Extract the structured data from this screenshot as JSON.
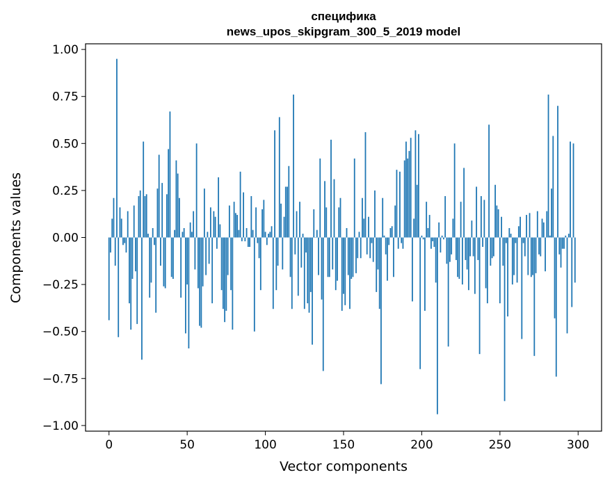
{
  "chart_data": {
    "type": "bar",
    "title_line1": "специфика",
    "title_line2": "news_upos_skipgram_300_5_2019 model",
    "xlabel": "Vector components",
    "ylabel": "Components values",
    "xlim": [
      -15,
      315
    ],
    "ylim": [
      -1.03,
      1.03
    ],
    "xticks": [
      0,
      50,
      100,
      150,
      200,
      250,
      300
    ],
    "xtick_labels": [
      "0",
      "50",
      "100",
      "150",
      "200",
      "250",
      "300"
    ],
    "yticks": [
      1.0,
      0.75,
      0.5,
      0.25,
      0.0,
      -0.25,
      -0.5,
      -0.75,
      -1.0
    ],
    "ytick_labels": [
      "1.00",
      "0.75",
      "0.50",
      "0.25",
      "0.00",
      "−0.25",
      "−0.50",
      "−0.75",
      "−1.00"
    ],
    "bar_color": "#1f77b4",
    "grid": false,
    "values": [
      -0.44,
      -0.08,
      0.1,
      0.21,
      -0.15,
      0.95,
      -0.53,
      0.16,
      0.1,
      -0.04,
      -0.03,
      -0.08,
      0.14,
      -0.35,
      -0.49,
      -0.22,
      0.17,
      -0.18,
      -0.46,
      0.22,
      0.25,
      -0.65,
      0.51,
      0.22,
      0.23,
      0.02,
      -0.32,
      -0.24,
      0.05,
      -0.04,
      -0.4,
      0.26,
      0.44,
      -0.15,
      0.29,
      -0.26,
      -0.27,
      0.23,
      0.47,
      0.67,
      -0.21,
      -0.22,
      0.04,
      0.41,
      0.34,
      0.21,
      -0.32,
      0.03,
      0.05,
      -0.51,
      -0.25,
      -0.59,
      0.08,
      0.03,
      0.14,
      -0.17,
      0.5,
      -0.27,
      -0.47,
      -0.48,
      -0.26,
      0.26,
      -0.2,
      0.03,
      -0.14,
      0.16,
      -0.35,
      0.14,
      0.11,
      -0.06,
      0.32,
      0.07,
      -0.28,
      -0.38,
      -0.45,
      -0.39,
      -0.2,
      0.17,
      -0.28,
      -0.49,
      0.19,
      0.13,
      0.12,
      0.04,
      0.35,
      -0.02,
      0.24,
      -0.02,
      0.05,
      -0.05,
      -0.05,
      0.22,
      0.04,
      -0.5,
      0.16,
      -0.03,
      -0.11,
      -0.28,
      0.15,
      0.2,
      0.03,
      -0.04,
      0.02,
      0.03,
      0.06,
      -0.38,
      0.57,
      -0.28,
      -0.15,
      0.64,
      0.18,
      -0.17,
      0.11,
      0.27,
      0.27,
      0.38,
      -0.21,
      -0.38,
      0.76,
      -0.09,
      0.14,
      -0.31,
      0.19,
      -0.16,
      0.02,
      -0.38,
      -0.08,
      -0.35,
      -0.4,
      -0.29,
      -0.57,
      0.15,
      0.0,
      0.04,
      -0.2,
      0.42,
      -0.33,
      -0.71,
      0.3,
      0.16,
      -0.21,
      -0.21,
      0.52,
      -0.17,
      0.31,
      -0.28,
      -0.23,
      0.16,
      0.21,
      -0.39,
      -0.3,
      -0.36,
      0.05,
      -0.2,
      -0.38,
      -0.22,
      -0.21,
      0.42,
      -0.19,
      -0.11,
      0.03,
      -0.11,
      0.21,
      0.1,
      0.56,
      -0.09,
      0.11,
      -0.11,
      -0.03,
      -0.13,
      0.25,
      -0.29,
      -0.17,
      -0.38,
      -0.78,
      0.21,
      0.01,
      -0.09,
      -0.23,
      -0.04,
      0.05,
      0.06,
      -0.21,
      0.17,
      0.36,
      -0.06,
      0.35,
      -0.03,
      -0.06,
      0.41,
      0.51,
      0.42,
      0.46,
      0.53,
      -0.34,
      0.1,
      0.57,
      0.28,
      0.55,
      -0.7,
      0.01,
      -0.01,
      -0.39,
      0.19,
      0.05,
      0.12,
      -0.06,
      -0.02,
      -0.05,
      -0.24,
      -0.94,
      0.08,
      -0.08,
      0.01,
      -0.01,
      0.22,
      -0.14,
      -0.58,
      -0.13,
      -0.09,
      0.1,
      0.5,
      -0.12,
      -0.21,
      -0.22,
      0.19,
      -0.25,
      0.37,
      -0.12,
      -0.17,
      -0.28,
      -0.1,
      0.09,
      -0.1,
      -0.3,
      0.27,
      -0.12,
      -0.62,
      0.22,
      -0.05,
      0.2,
      -0.27,
      -0.35,
      0.6,
      -0.15,
      -0.11,
      -0.1,
      0.28,
      0.17,
      0.15,
      -0.35,
      0.11,
      -0.15,
      -0.87,
      -0.03,
      -0.42,
      0.05,
      0.02,
      -0.25,
      -0.2,
      -0.03,
      -0.24,
      0.06,
      0.11,
      -0.54,
      -0.03,
      -0.1,
      0.12,
      -0.2,
      0.13,
      -0.21,
      -0.2,
      -0.63,
      -0.19,
      0.14,
      -0.09,
      -0.1,
      0.1,
      0.08,
      -0.18,
      0.14,
      0.76,
      0.01,
      0.26,
      0.54,
      -0.43,
      -0.74,
      0.7,
      -0.09,
      -0.16,
      -0.06,
      -0.06,
      0.01,
      -0.51,
      0.02,
      0.51,
      -0.37,
      0.5,
      -0.24
    ]
  }
}
